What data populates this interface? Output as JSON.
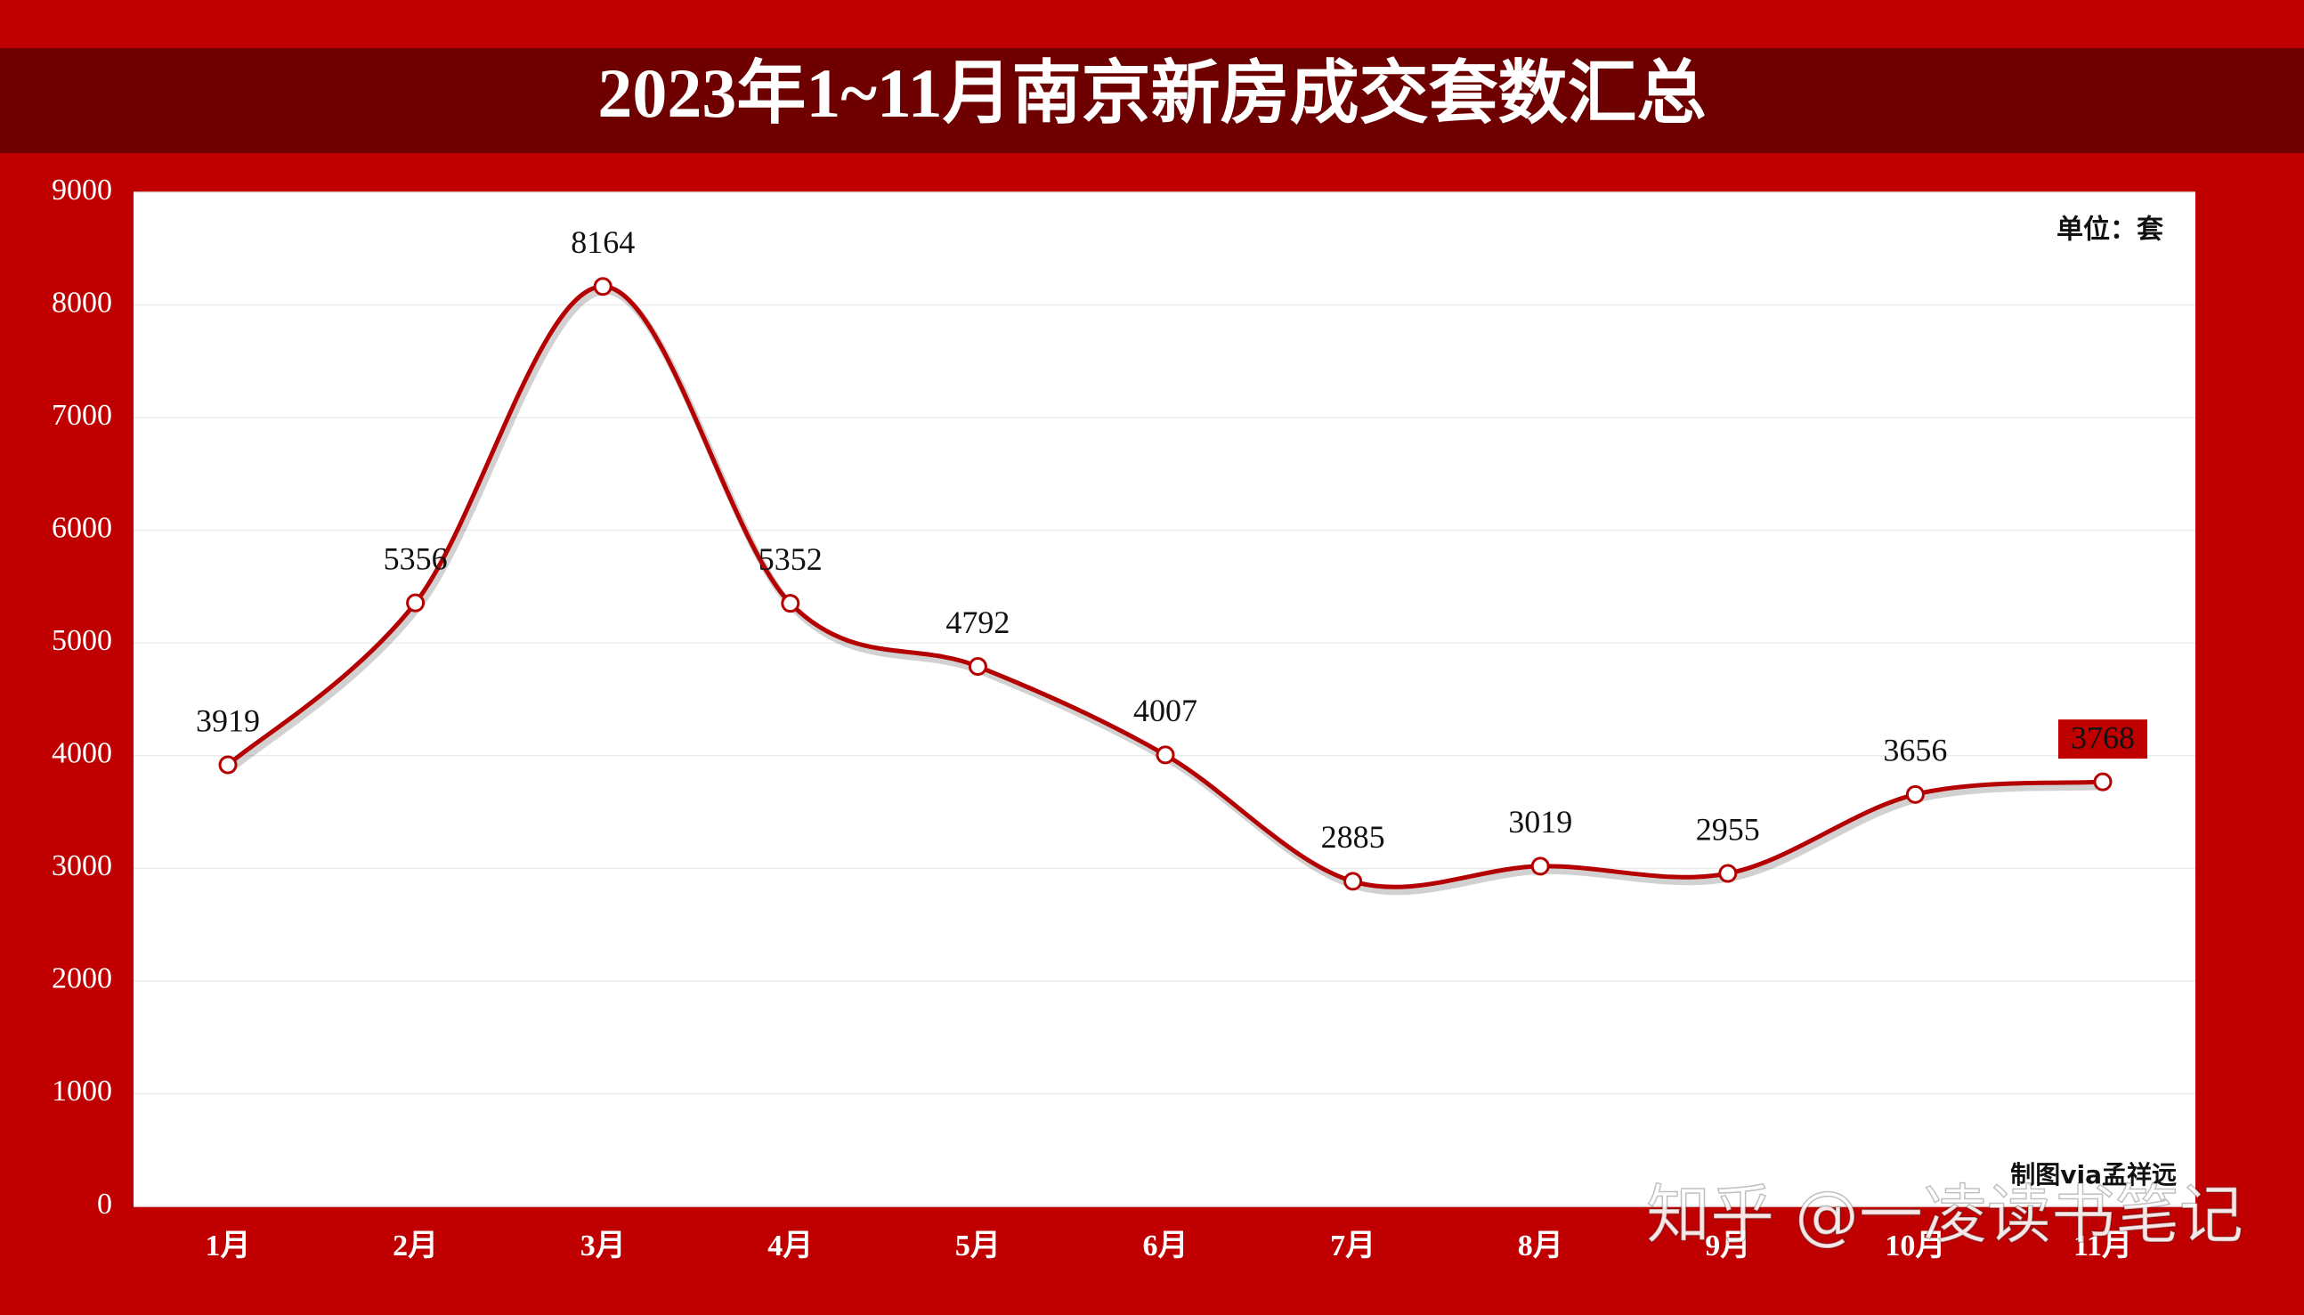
{
  "chart_data": {
    "type": "line",
    "title": "2023年1~11月南京新房成交套数汇总",
    "unit_note": "单位：套",
    "credit": "制图via孟祥远",
    "watermark": "知乎 @一凌读书笔记",
    "categories": [
      "1月",
      "2月",
      "3月",
      "4月",
      "5月",
      "6月",
      "7月",
      "8月",
      "9月",
      "10月",
      "11月"
    ],
    "values": [
      3919,
      5356,
      8164,
      5352,
      4792,
      4007,
      2885,
      3019,
      2955,
      3656,
      3768
    ],
    "color": "#b40000",
    "ylim": [
      0,
      9000
    ],
    "yticks": [
      0,
      1000,
      2000,
      3000,
      4000,
      5000,
      6000,
      7000,
      8000,
      9000
    ],
    "grid": true
  }
}
